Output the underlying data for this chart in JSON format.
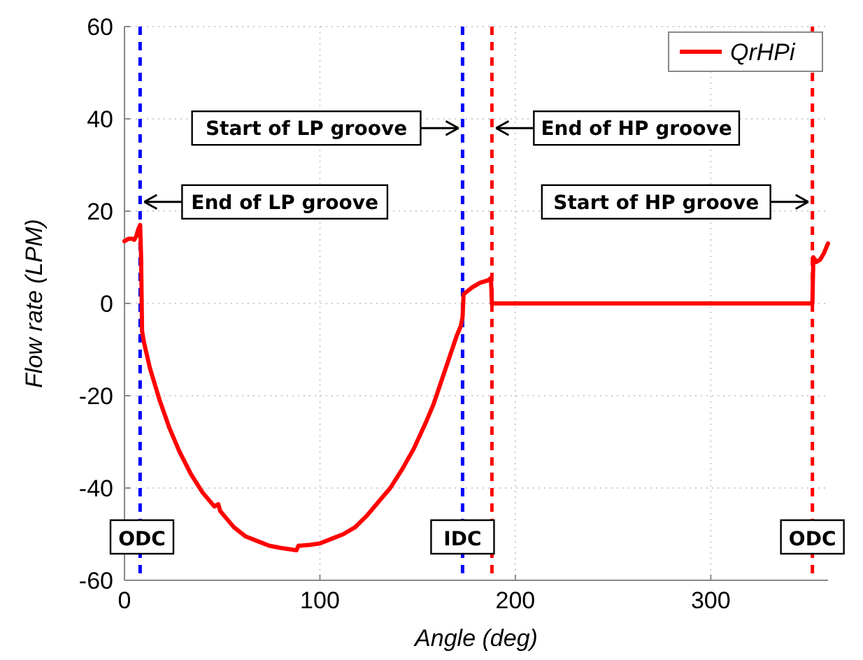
{
  "chart_data": {
    "type": "line",
    "xlabel": "Angle (deg)",
    "ylabel": "Flow rate (LPM)",
    "xlim": [
      0,
      360
    ],
    "ylim": [
      -60,
      60
    ],
    "xticks": [
      0,
      100,
      200,
      300
    ],
    "yticks": [
      -60,
      -40,
      -20,
      0,
      20,
      40,
      60
    ],
    "grid": true,
    "legend": "top right",
    "line_style": "solid",
    "marker": "none",
    "series": [
      {
        "name": "QrHPi",
        "color": "#ff0000",
        "x": [
          0,
          2,
          4,
          5,
          6,
          7,
          8,
          8.5,
          9,
          10,
          13,
          18,
          23,
          28,
          34,
          40,
          46,
          48,
          49,
          51,
          56,
          62,
          68,
          74,
          80,
          85,
          88,
          89,
          90,
          95,
          100,
          106,
          112,
          118,
          124,
          130,
          136,
          142,
          148,
          154,
          158,
          162,
          166,
          170,
          172,
          173,
          173.5,
          175,
          178,
          182,
          186,
          187.5,
          188,
          200,
          250,
          300,
          350,
          352,
          352.5,
          354,
          356,
          358,
          360
        ],
        "values": [
          13.5,
          14,
          14,
          13.8,
          14.5,
          16,
          17,
          10,
          -6,
          -8.5,
          -14,
          -21,
          -27,
          -32,
          -37,
          -41,
          -44,
          -43.5,
          -45,
          -46,
          -48.5,
          -50.5,
          -51.5,
          -52.5,
          -53,
          -53.3,
          -53.5,
          -52.5,
          -52.5,
          -52.3,
          -52,
          -51,
          -50,
          -48.5,
          -46,
          -43,
          -40,
          -36,
          -31.5,
          -26,
          -22,
          -17,
          -12,
          -7,
          -5,
          -3,
          2,
          2.5,
          3.5,
          4.5,
          5,
          5.5,
          0,
          0,
          0,
          0,
          0,
          0,
          10,
          9,
          9.5,
          11,
          13
        ]
      }
    ],
    "ref_lines": [
      {
        "axis": "x",
        "value": 8,
        "color": "#0000ff",
        "line_style": "dashed",
        "label": "ODC"
      },
      {
        "axis": "x",
        "value": 173,
        "color": "#0000ff",
        "line_style": "dashed",
        "label": "IDC"
      },
      {
        "axis": "x",
        "value": 188,
        "color": "#ff0000",
        "line_style": "dashed"
      },
      {
        "axis": "x",
        "value": 352,
        "color": "#ff0000",
        "line_style": "dashed",
        "label": "ODC"
      }
    ],
    "annotations": [
      {
        "text": "Start of LP groove",
        "x": 173,
        "y": 38
      },
      {
        "text": "End of LP groove",
        "x": 8,
        "y": 22
      },
      {
        "text": "End of HP groove",
        "x": 188,
        "y": 38
      },
      {
        "text": "Start of HP groove",
        "x": 352,
        "y": 22
      }
    ]
  }
}
